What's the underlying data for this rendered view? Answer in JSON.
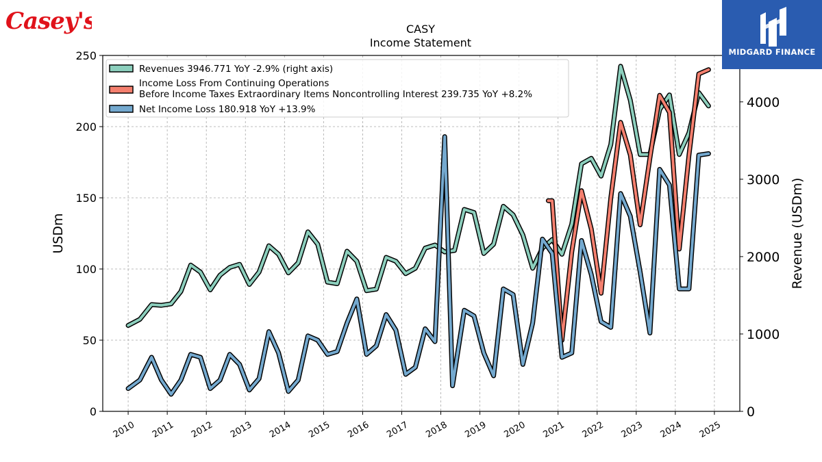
{
  "header": {
    "brand_logo_text": "Casey's",
    "badge_text": "MIDGARD FINANCE"
  },
  "chart_data": {
    "type": "line",
    "title": "CASY",
    "subtitle": "Income Statement",
    "ylabel_left": "USDm",
    "ylabel_right": "Revenue (USDm)",
    "ylim_left": [
      0,
      250
    ],
    "ylim_right": [
      0,
      4600
    ],
    "yticks_left": [
      "0",
      "50",
      "100",
      "150",
      "200",
      "250"
    ],
    "yticks_right": [
      "0",
      "1000",
      "2000",
      "3000",
      "4000"
    ],
    "xlim": [
      2009.35,
      2025.65
    ],
    "xticks": [
      "2010",
      "2011",
      "2012",
      "2013",
      "2014",
      "2015",
      "2016",
      "2017",
      "2018",
      "2019",
      "2020",
      "2021",
      "2022",
      "2023",
      "2024",
      "2025"
    ],
    "grid": true,
    "legend_position": "top-left",
    "legend": [
      {
        "text": "Revenues  3946.771 YoY -2.9% (right axis)"
      },
      {
        "text": "Income Loss From Continuing Operations",
        "text2": "Before Income Taxes Extraordinary Items Noncontrolling Interest  239.735 YoY +8.2%"
      },
      {
        "text": "Net Income Loss  180.918 YoY +13.9%"
      }
    ],
    "series": [
      {
        "name": "Revenues",
        "axis": "right",
        "color": "#8ccfbd",
        "x": [
          2010.0,
          2010.3,
          2010.6,
          2010.85,
          2011.1,
          2011.35,
          2011.6,
          2011.85,
          2012.1,
          2012.35,
          2012.6,
          2012.85,
          2013.1,
          2013.35,
          2013.6,
          2013.85,
          2014.1,
          2014.35,
          2014.6,
          2014.85,
          2015.1,
          2015.35,
          2015.6,
          2015.85,
          2016.1,
          2016.35,
          2016.6,
          2016.85,
          2017.1,
          2017.35,
          2017.6,
          2017.85,
          2018.1,
          2018.35,
          2018.6,
          2018.85,
          2019.1,
          2019.35,
          2019.6,
          2019.85,
          2020.1,
          2020.35,
          2020.6,
          2020.85,
          2021.1,
          2021.35,
          2021.6,
          2021.85,
          2022.1,
          2022.35,
          2022.6,
          2022.85,
          2023.1,
          2023.35,
          2023.6,
          2023.85,
          2024.1,
          2024.35,
          2024.6,
          2024.85
        ],
        "y": [
          1110,
          1190,
          1380,
          1370,
          1390,
          1550,
          1890,
          1800,
          1570,
          1760,
          1860,
          1900,
          1640,
          1800,
          2140,
          2030,
          1790,
          1920,
          2320,
          2160,
          1670,
          1650,
          2070,
          1940,
          1560,
          1580,
          1990,
          1940,
          1780,
          1850,
          2110,
          2150,
          2060,
          2080,
          2610,
          2570,
          2040,
          2160,
          2650,
          2540,
          2280,
          1850,
          2110,
          2220,
          2030,
          2420,
          3200,
          3270,
          3040,
          3450,
          4460,
          4020,
          3320,
          3320,
          3900,
          4090,
          3320,
          3600,
          4120,
          3947
        ]
      },
      {
        "name": "Income Loss From Continuing Operations Before Income Taxes Extraordinary Items Noncontrolling Interest",
        "axis": "left",
        "color": "#f47f6e",
        "x": [
          2020.75,
          2020.85,
          2021.1,
          2021.35,
          2021.6,
          2021.85,
          2022.1,
          2022.35,
          2022.6,
          2022.85,
          2023.1,
          2023.35,
          2023.6,
          2023.85,
          2024.1,
          2024.35,
          2024.6,
          2024.85
        ],
        "y": [
          148,
          148,
          50,
          112,
          155,
          128,
          83,
          150,
          203,
          180,
          131,
          178,
          222,
          210,
          114,
          180,
          237,
          240
        ]
      },
      {
        "name": "Net Income Loss",
        "axis": "left",
        "color": "#74a9cf",
        "x": [
          2010.0,
          2010.3,
          2010.6,
          2010.85,
          2011.1,
          2011.35,
          2011.6,
          2011.85,
          2012.1,
          2012.35,
          2012.6,
          2012.85,
          2013.1,
          2013.35,
          2013.6,
          2013.85,
          2014.1,
          2014.35,
          2014.6,
          2014.85,
          2015.1,
          2015.35,
          2015.6,
          2015.85,
          2016.1,
          2016.35,
          2016.6,
          2016.85,
          2017.1,
          2017.35,
          2017.6,
          2017.85,
          2018.1,
          2018.3,
          2018.6,
          2018.85,
          2019.1,
          2019.35,
          2019.6,
          2019.85,
          2020.1,
          2020.35,
          2020.6,
          2020.85,
          2021.1,
          2021.35,
          2021.6,
          2021.85,
          2022.1,
          2022.35,
          2022.6,
          2022.85,
          2023.1,
          2023.35,
          2023.6,
          2023.85,
          2024.1,
          2024.35,
          2024.6,
          2024.85
        ],
        "y": [
          16,
          22,
          38,
          22,
          12,
          22,
          40,
          38,
          16,
          22,
          40,
          33,
          15,
          23,
          56,
          41,
          14,
          22,
          53,
          50,
          40,
          42,
          62,
          79,
          40,
          46,
          68,
          57,
          26,
          31,
          58,
          49,
          193,
          18,
          71,
          67,
          41,
          25,
          86,
          82,
          33,
          62,
          121,
          111,
          38,
          41,
          120,
          96,
          63,
          59,
          153,
          137,
          98,
          55,
          170,
          159,
          86,
          86,
          180,
          181
        ]
      }
    ]
  }
}
